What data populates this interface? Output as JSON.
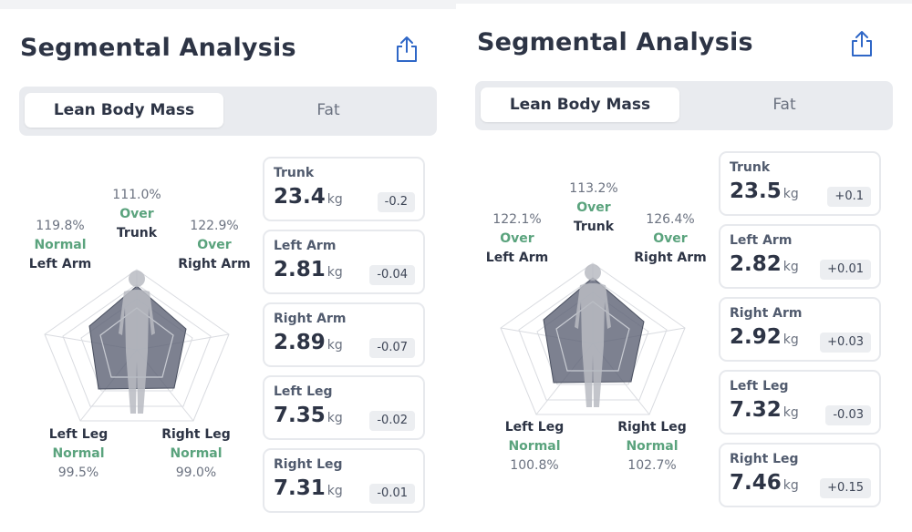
{
  "panels": [
    {
      "title": "Segmental Analysis",
      "tabs": {
        "active": "Lean Body Mass",
        "inactive": "Fat"
      },
      "radar": {
        "trunk": {
          "pct": "111.0%",
          "status": "Over",
          "name": "Trunk"
        },
        "left_arm": {
          "pct": "119.8%",
          "status": "Normal",
          "name": "Left Arm"
        },
        "right_arm": {
          "pct": "122.9%",
          "status": "Over",
          "name": "Right Arm"
        },
        "left_leg": {
          "pct": "99.5%",
          "status": "Normal",
          "name": "Left Leg"
        },
        "right_leg": {
          "pct": "99.0%",
          "status": "Normal",
          "name": "Right Leg"
        }
      },
      "cards": [
        {
          "label": "Trunk",
          "value": "23.4",
          "unit": "kg",
          "delta": "-0.2"
        },
        {
          "label": "Left Arm",
          "value": "2.81",
          "unit": "kg",
          "delta": "-0.04"
        },
        {
          "label": "Right Arm",
          "value": "2.89",
          "unit": "kg",
          "delta": "-0.07"
        },
        {
          "label": "Left Leg",
          "value": "7.35",
          "unit": "kg",
          "delta": "-0.02"
        },
        {
          "label": "Right Leg",
          "value": "7.31",
          "unit": "kg",
          "delta": "-0.01"
        }
      ]
    },
    {
      "title": "Segmental Analysis",
      "tabs": {
        "active": "Lean Body Mass",
        "inactive": "Fat"
      },
      "radar": {
        "trunk": {
          "pct": "113.2%",
          "status": "Over",
          "name": "Trunk"
        },
        "left_arm": {
          "pct": "122.1%",
          "status": "Over",
          "name": "Left Arm"
        },
        "right_arm": {
          "pct": "126.4%",
          "status": "Over",
          "name": "Right Arm"
        },
        "left_leg": {
          "pct": "100.8%",
          "status": "Normal",
          "name": "Left Leg"
        },
        "right_leg": {
          "pct": "102.7%",
          "status": "Normal",
          "name": "Right Leg"
        }
      },
      "cards": [
        {
          "label": "Trunk",
          "value": "23.5",
          "unit": "kg",
          "delta": "+0.1"
        },
        {
          "label": "Left Arm",
          "value": "2.82",
          "unit": "kg",
          "delta": "+0.01"
        },
        {
          "label": "Right Arm",
          "value": "2.92",
          "unit": "kg",
          "delta": "+0.03"
        },
        {
          "label": "Left Leg",
          "value": "7.32",
          "unit": "kg",
          "delta": "-0.03"
        },
        {
          "label": "Right Leg",
          "value": "7.46",
          "unit": "kg",
          "delta": "+0.15"
        }
      ]
    }
  ],
  "icons": {
    "share": "share-icon",
    "body": "body-silhouette-icon"
  },
  "colors": {
    "title": "#2d3445",
    "status_green": "#5aa37d",
    "radar_fill": "#5c6274",
    "card_border": "#e7e9ed"
  }
}
